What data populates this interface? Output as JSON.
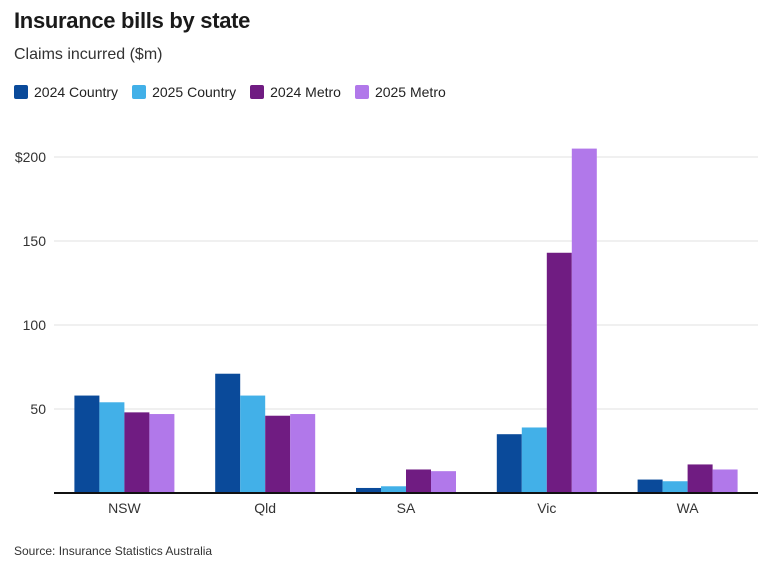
{
  "title": "Insurance bills by state",
  "subtitle": "Claims incurred ($m)",
  "source": "Source: Insurance Statistics Australia",
  "colors": {
    "2024 Country": "#0a4a9a",
    "2025 Country": "#42b0e8",
    "2024 Metro": "#701c82",
    "2025 Metro": "#b178ea",
    "grid": "#e2e2e2",
    "axis": "#111111"
  },
  "chart_data": {
    "type": "bar",
    "title": "Insurance bills by state",
    "subtitle": "Claims incurred ($m)",
    "xlabel": "",
    "ylabel": "",
    "categories": [
      "NSW",
      "Qld",
      "SA",
      "Vic",
      "WA"
    ],
    "series": [
      {
        "name": "2024 Country",
        "values": [
          58,
          71,
          3,
          35,
          8
        ]
      },
      {
        "name": "2025 Country",
        "values": [
          54,
          58,
          4,
          39,
          7
        ]
      },
      {
        "name": "2024 Metro",
        "values": [
          48,
          46,
          14,
          143,
          17
        ]
      },
      {
        "name": "2025 Metro",
        "values": [
          47,
          47,
          13,
          205,
          14
        ]
      }
    ],
    "ylim": [
      0,
      200
    ],
    "yticks": [
      50,
      100,
      150,
      200
    ],
    "ytick_labels": [
      "50",
      "100",
      "150",
      "$200"
    ],
    "grid": true,
    "legend": "top-left"
  }
}
